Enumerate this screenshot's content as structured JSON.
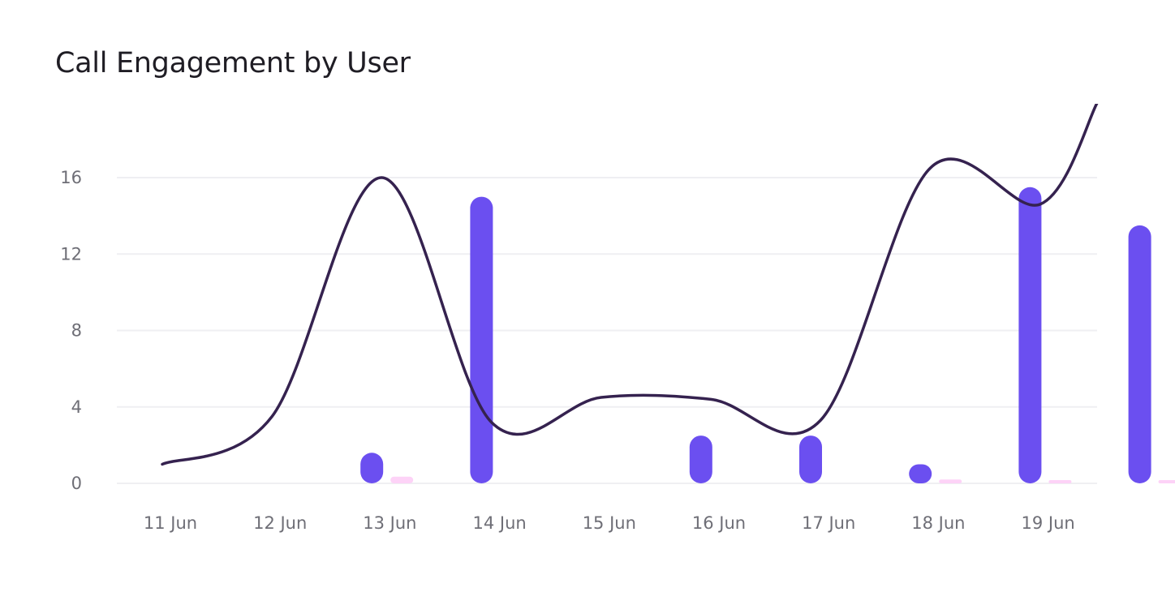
{
  "title": "Call Engagement by User",
  "chart_data": {
    "type": "bar",
    "title": "Call Engagement by User",
    "xlabel": "",
    "ylabel": "",
    "categories": [
      "11 Jun",
      "12 Jun",
      "13 Jun",
      "14 Jun",
      "15 Jun",
      "16 Jun",
      "17 Jun",
      "18 Jun",
      "19 Jun"
    ],
    "yticks": [
      0,
      4,
      8,
      12,
      16
    ],
    "ylim": [
      0,
      16
    ],
    "grid": true,
    "series": [
      {
        "type": "bar",
        "color": "#6b4ff0",
        "values": [
          0,
          1.6,
          15,
          0,
          2.5,
          2.5,
          1,
          15.5,
          13.5
        ]
      },
      {
        "type": "bar",
        "color": "#fdd3f7",
        "values": [
          0,
          0.35,
          0,
          0,
          0,
          0,
          0.2,
          0.05,
          0.1
        ]
      },
      {
        "type": "line",
        "color": "#35224f",
        "smooth": true,
        "values": [
          1,
          3.5,
          16,
          3.2,
          4.5,
          4.4,
          3.3,
          16.5,
          14.6
        ]
      }
    ]
  }
}
